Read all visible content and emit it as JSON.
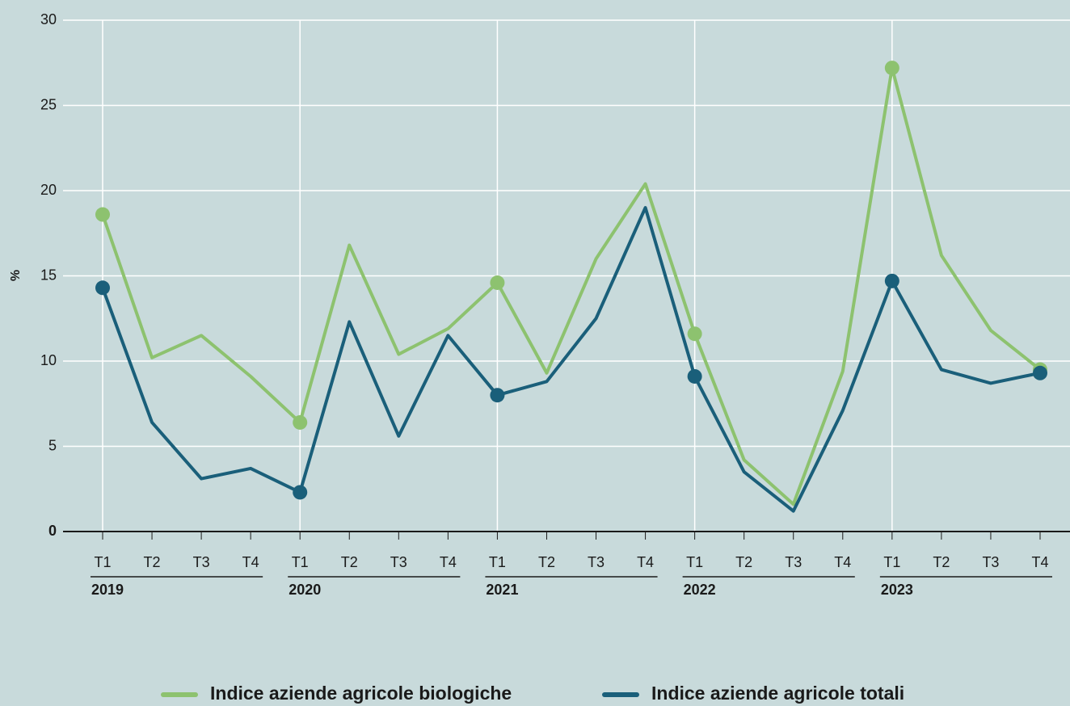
{
  "chart_data": {
    "type": "line",
    "categories": [
      "T1",
      "T2",
      "T3",
      "T4",
      "T1",
      "T2",
      "T3",
      "T4",
      "T1",
      "T2",
      "T3",
      "T4",
      "T1",
      "T2",
      "T3",
      "T4",
      "T1",
      "T2",
      "T3",
      "T4"
    ],
    "years": [
      "2019",
      "2020",
      "2021",
      "2022",
      "2023"
    ],
    "ylabel": "%",
    "ylim": [
      0,
      30
    ],
    "yticks": [
      0,
      5,
      10,
      15,
      20,
      25,
      30
    ],
    "grid": true,
    "legend": "bottom",
    "series": [
      {
        "name": "Indice aziende agricole biologiche",
        "color": "#8dc26f",
        "values": [
          18.6,
          10.2,
          11.5,
          9.1,
          6.4,
          16.8,
          10.4,
          11.9,
          14.6,
          9.3,
          16.0,
          20.4,
          11.6,
          4.2,
          1.6,
          9.4,
          27.2,
          16.2,
          11.8,
          9.5
        ]
      },
      {
        "name": "Indice aziende agricole totali",
        "color": "#1a5f7a",
        "values": [
          14.3,
          6.4,
          3.1,
          3.7,
          2.3,
          12.3,
          5.6,
          11.5,
          8.0,
          8.8,
          12.5,
          19.0,
          9.1,
          3.5,
          1.2,
          7.1,
          14.7,
          9.5,
          8.7,
          9.3
        ]
      }
    ]
  }
}
